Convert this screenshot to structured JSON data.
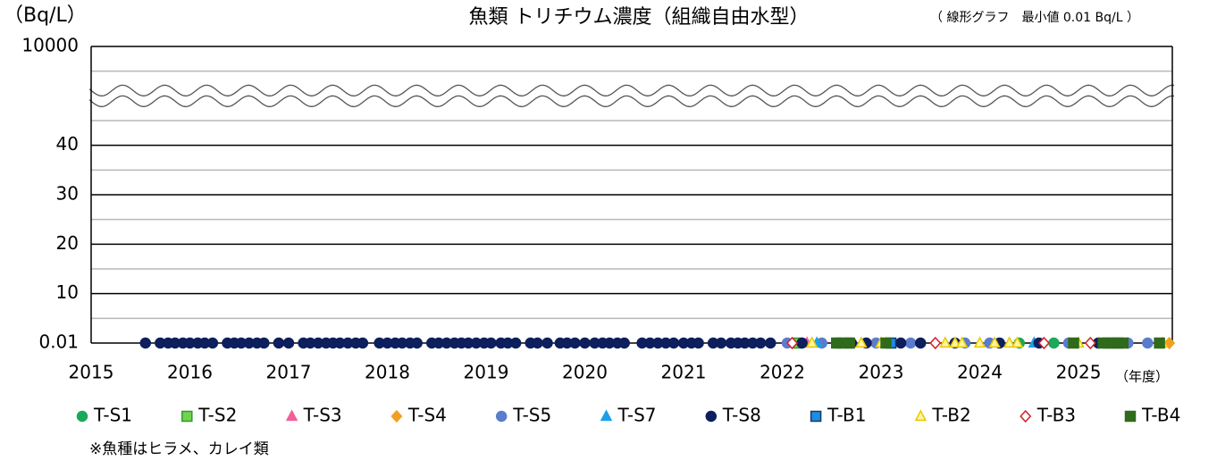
{
  "chart_data": {
    "type": "scatter",
    "title": "魚類 トリチウム濃度（組織自由水型）",
    "y_unit": "（Bq/L）",
    "note": "（ 線形グラフ　最小値 0.01 Bq/L ）",
    "x_unit": "（年度）",
    "footnote": "※魚種はヒラメ、カレイ類",
    "xlim": [
      2015,
      2025.95
    ],
    "xticks": [
      2015,
      2016,
      2017,
      2018,
      2019,
      2020,
      2021,
      2022,
      2023,
      2024,
      2025
    ],
    "yticks": [
      0.01,
      10,
      20,
      30,
      40,
      10000
    ],
    "y_break": [
      40,
      10000
    ],
    "grid": true,
    "legend": "bottom",
    "series": [
      {
        "name": "T-S1",
        "color": "#1aa85a",
        "fill": "#1aa85a",
        "marker": "circle",
        "x": [
          2024.4,
          2024.75
        ],
        "values": [
          0.01,
          0.01
        ]
      },
      {
        "name": "T-S2",
        "color": "#2e9a2e",
        "fill": "#72d44e",
        "marker": "square",
        "x": [
          2022.15
        ],
        "values": [
          0.01
        ]
      },
      {
        "name": "T-S3",
        "color": "#f0609a",
        "fill": "#f0609a",
        "marker": "triangle",
        "x": [
          2022.25
        ],
        "values": [
          0.01
        ]
      },
      {
        "name": "T-S4",
        "color": "#f0a020",
        "fill": "#f0a020",
        "marker": "diamond",
        "x": [
          2025.92
        ],
        "values": [
          0.01
        ]
      },
      {
        "name": "T-S5",
        "color": "#5b7ccc",
        "fill": "#5b7ccc",
        "marker": "circle",
        "x": [
          2022.05,
          2022.4,
          2022.55,
          2022.95,
          2023.3,
          2023.85,
          2024.1,
          2024.9,
          2025.5,
          2025.7
        ],
        "values": [
          0.01,
          0.01,
          0.01,
          0.01,
          0.01,
          0.01,
          0.01,
          0.01,
          0.01,
          0.01
        ]
      },
      {
        "name": "T-S7",
        "color": "#1aa0e8",
        "fill": "#1aa0e8",
        "marker": "triangle",
        "x": [
          2022.35,
          2024.55
        ],
        "values": [
          0.01,
          0.01
        ]
      },
      {
        "name": "T-S8",
        "color": "#0d1f5c",
        "fill": "#0d1f5c",
        "marker": "circle",
        "x": [
          2015.55,
          2015.7,
          2015.78,
          2015.85,
          2015.93,
          2016.0,
          2016.08,
          2016.15,
          2016.23,
          2016.38,
          2016.45,
          2016.52,
          2016.6,
          2016.68,
          2016.75,
          2016.9,
          2017.0,
          2017.15,
          2017.22,
          2017.3,
          2017.38,
          2017.45,
          2017.52,
          2017.6,
          2017.68,
          2017.75,
          2017.92,
          2018.0,
          2018.08,
          2018.15,
          2018.23,
          2018.3,
          2018.45,
          2018.52,
          2018.6,
          2018.68,
          2018.75,
          2018.82,
          2018.9,
          2018.98,
          2019.05,
          2019.15,
          2019.22,
          2019.3,
          2019.45,
          2019.52,
          2019.62,
          2019.75,
          2019.82,
          2019.9,
          2020.0,
          2020.1,
          2020.18,
          2020.25,
          2020.33,
          2020.4,
          2020.58,
          2020.66,
          2020.74,
          2020.82,
          2020.9,
          2021.0,
          2021.08,
          2021.15,
          2021.3,
          2021.38,
          2021.48,
          2021.55,
          2021.62,
          2021.7,
          2021.78,
          2021.88,
          2022.2,
          2022.7,
          2022.85,
          2023.2,
          2023.4,
          2023.75,
          2024.2,
          2024.6,
          2025.2
        ],
        "values": [
          0.01,
          0.01,
          0.01,
          0.01,
          0.01,
          0.01,
          0.01,
          0.01,
          0.01,
          0.01,
          0.01,
          0.01,
          0.01,
          0.01,
          0.01,
          0.01,
          0.01,
          0.01,
          0.01,
          0.01,
          0.01,
          0.01,
          0.01,
          0.01,
          0.01,
          0.01,
          0.01,
          0.01,
          0.01,
          0.01,
          0.01,
          0.01,
          0.01,
          0.01,
          0.01,
          0.01,
          0.01,
          0.01,
          0.01,
          0.01,
          0.01,
          0.01,
          0.01,
          0.01,
          0.01,
          0.01,
          0.01,
          0.01,
          0.01,
          0.01,
          0.01,
          0.01,
          0.01,
          0.01,
          0.01,
          0.01,
          0.01,
          0.01,
          0.01,
          0.01,
          0.01,
          0.01,
          0.01,
          0.01,
          0.01,
          0.01,
          0.01,
          0.01,
          0.01,
          0.01,
          0.01,
          0.01,
          0.01,
          0.01,
          0.01,
          0.01,
          0.01,
          0.01,
          0.01,
          0.01,
          0.01
        ]
      },
      {
        "name": "T-B1",
        "color": "#123a6a",
        "fill": "#1e8ce0",
        "marker": "square",
        "x": [
          2023.1,
          2025.4
        ],
        "values": [
          0.01,
          0.01
        ]
      },
      {
        "name": "T-B2",
        "color": "#e8c800",
        "fill": "#fff6a0",
        "marker": "triangle",
        "x": [
          2022.3,
          2022.8,
          2023.0,
          2023.05,
          2023.65,
          2023.75,
          2023.82,
          2024.0,
          2024.15,
          2024.3,
          2024.38,
          2025.0,
          2025.85
        ],
        "values": [
          0.01,
          0.01,
          0.01,
          0.01,
          0.01,
          0.01,
          0.01,
          0.01,
          0.01,
          0.01,
          0.01,
          0.01,
          0.01
        ]
      },
      {
        "name": "T-B3",
        "color": "#d0202a",
        "fill": "#ffffff",
        "marker": "diamond",
        "x": [
          2022.1,
          2023.55,
          2024.65,
          2025.12
        ],
        "values": [
          0.01,
          0.01,
          0.01,
          0.01
        ]
      },
      {
        "name": "T-B4",
        "color": "#2f6b1a",
        "fill": "#2f6b1a",
        "marker": "square",
        "x": [
          2022.55,
          2022.62,
          2022.68,
          2023.05,
          2024.95,
          2025.25,
          2025.3,
          2025.35,
          2025.45,
          2025.82
        ],
        "values": [
          0.01,
          0.01,
          0.01,
          0.01,
          0.01,
          0.01,
          0.01,
          0.01,
          0.01,
          0.01
        ]
      }
    ]
  }
}
